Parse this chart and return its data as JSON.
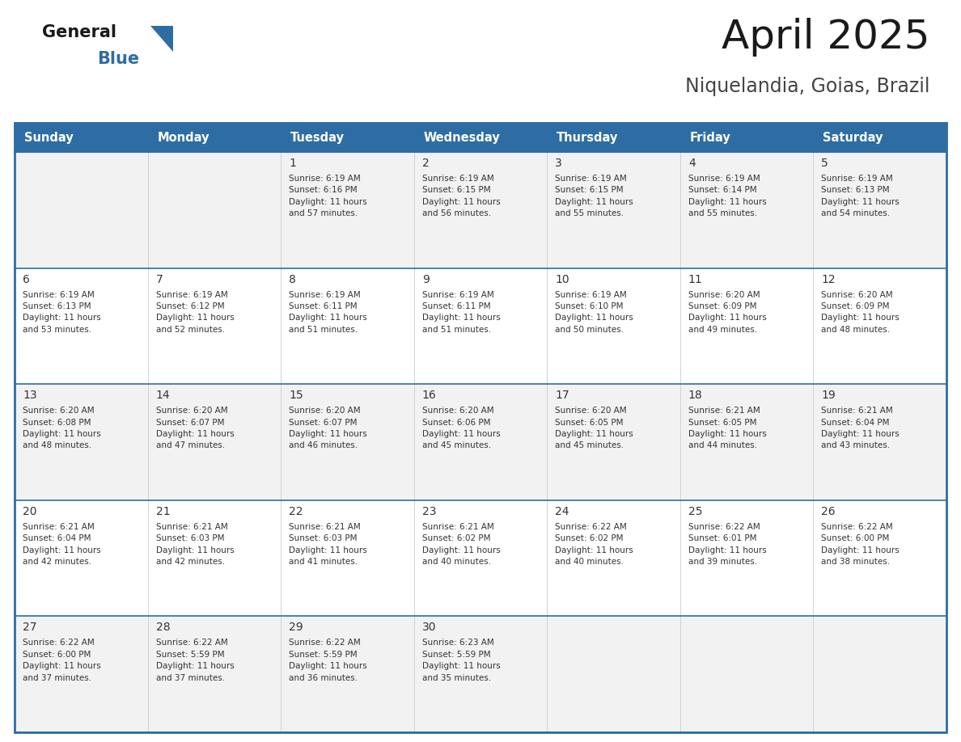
{
  "title": "April 2025",
  "subtitle": "Niquelandia, Goias, Brazil",
  "days_of_week": [
    "Sunday",
    "Monday",
    "Tuesday",
    "Wednesday",
    "Thursday",
    "Friday",
    "Saturday"
  ],
  "header_bg": "#2E6DA4",
  "header_text": "#FFFFFF",
  "cell_bg_odd": "#F2F2F2",
  "cell_bg_even": "#FFFFFF",
  "cell_text": "#333333",
  "border_color": "#2E6DA4",
  "logo_general_color": "#1a1a1a",
  "logo_blue_color": "#2E6DA4",
  "title_color": "#1a1a1a",
  "subtitle_color": "#444444",
  "calendar_data": [
    [
      {
        "day": "",
        "info": ""
      },
      {
        "day": "",
        "info": ""
      },
      {
        "day": "1",
        "info": "Sunrise: 6:19 AM\nSunset: 6:16 PM\nDaylight: 11 hours\nand 57 minutes."
      },
      {
        "day": "2",
        "info": "Sunrise: 6:19 AM\nSunset: 6:15 PM\nDaylight: 11 hours\nand 56 minutes."
      },
      {
        "day": "3",
        "info": "Sunrise: 6:19 AM\nSunset: 6:15 PM\nDaylight: 11 hours\nand 55 minutes."
      },
      {
        "day": "4",
        "info": "Sunrise: 6:19 AM\nSunset: 6:14 PM\nDaylight: 11 hours\nand 55 minutes."
      },
      {
        "day": "5",
        "info": "Sunrise: 6:19 AM\nSunset: 6:13 PM\nDaylight: 11 hours\nand 54 minutes."
      }
    ],
    [
      {
        "day": "6",
        "info": "Sunrise: 6:19 AM\nSunset: 6:13 PM\nDaylight: 11 hours\nand 53 minutes."
      },
      {
        "day": "7",
        "info": "Sunrise: 6:19 AM\nSunset: 6:12 PM\nDaylight: 11 hours\nand 52 minutes."
      },
      {
        "day": "8",
        "info": "Sunrise: 6:19 AM\nSunset: 6:11 PM\nDaylight: 11 hours\nand 51 minutes."
      },
      {
        "day": "9",
        "info": "Sunrise: 6:19 AM\nSunset: 6:11 PM\nDaylight: 11 hours\nand 51 minutes."
      },
      {
        "day": "10",
        "info": "Sunrise: 6:19 AM\nSunset: 6:10 PM\nDaylight: 11 hours\nand 50 minutes."
      },
      {
        "day": "11",
        "info": "Sunrise: 6:20 AM\nSunset: 6:09 PM\nDaylight: 11 hours\nand 49 minutes."
      },
      {
        "day": "12",
        "info": "Sunrise: 6:20 AM\nSunset: 6:09 PM\nDaylight: 11 hours\nand 48 minutes."
      }
    ],
    [
      {
        "day": "13",
        "info": "Sunrise: 6:20 AM\nSunset: 6:08 PM\nDaylight: 11 hours\nand 48 minutes."
      },
      {
        "day": "14",
        "info": "Sunrise: 6:20 AM\nSunset: 6:07 PM\nDaylight: 11 hours\nand 47 minutes."
      },
      {
        "day": "15",
        "info": "Sunrise: 6:20 AM\nSunset: 6:07 PM\nDaylight: 11 hours\nand 46 minutes."
      },
      {
        "day": "16",
        "info": "Sunrise: 6:20 AM\nSunset: 6:06 PM\nDaylight: 11 hours\nand 45 minutes."
      },
      {
        "day": "17",
        "info": "Sunrise: 6:20 AM\nSunset: 6:05 PM\nDaylight: 11 hours\nand 45 minutes."
      },
      {
        "day": "18",
        "info": "Sunrise: 6:21 AM\nSunset: 6:05 PM\nDaylight: 11 hours\nand 44 minutes."
      },
      {
        "day": "19",
        "info": "Sunrise: 6:21 AM\nSunset: 6:04 PM\nDaylight: 11 hours\nand 43 minutes."
      }
    ],
    [
      {
        "day": "20",
        "info": "Sunrise: 6:21 AM\nSunset: 6:04 PM\nDaylight: 11 hours\nand 42 minutes."
      },
      {
        "day": "21",
        "info": "Sunrise: 6:21 AM\nSunset: 6:03 PM\nDaylight: 11 hours\nand 42 minutes."
      },
      {
        "day": "22",
        "info": "Sunrise: 6:21 AM\nSunset: 6:03 PM\nDaylight: 11 hours\nand 41 minutes."
      },
      {
        "day": "23",
        "info": "Sunrise: 6:21 AM\nSunset: 6:02 PM\nDaylight: 11 hours\nand 40 minutes."
      },
      {
        "day": "24",
        "info": "Sunrise: 6:22 AM\nSunset: 6:02 PM\nDaylight: 11 hours\nand 40 minutes."
      },
      {
        "day": "25",
        "info": "Sunrise: 6:22 AM\nSunset: 6:01 PM\nDaylight: 11 hours\nand 39 minutes."
      },
      {
        "day": "26",
        "info": "Sunrise: 6:22 AM\nSunset: 6:00 PM\nDaylight: 11 hours\nand 38 minutes."
      }
    ],
    [
      {
        "day": "27",
        "info": "Sunrise: 6:22 AM\nSunset: 6:00 PM\nDaylight: 11 hours\nand 37 minutes."
      },
      {
        "day": "28",
        "info": "Sunrise: 6:22 AM\nSunset: 5:59 PM\nDaylight: 11 hours\nand 37 minutes."
      },
      {
        "day": "29",
        "info": "Sunrise: 6:22 AM\nSunset: 5:59 PM\nDaylight: 11 hours\nand 36 minutes."
      },
      {
        "day": "30",
        "info": "Sunrise: 6:23 AM\nSunset: 5:59 PM\nDaylight: 11 hours\nand 35 minutes."
      },
      {
        "day": "",
        "info": ""
      },
      {
        "day": "",
        "info": ""
      },
      {
        "day": "",
        "info": ""
      }
    ]
  ]
}
